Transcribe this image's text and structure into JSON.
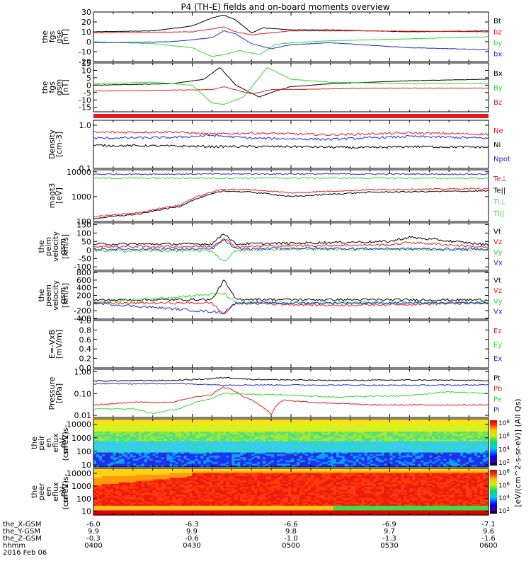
{
  "title": "P4 (TH-E) fields and on-board moments overview",
  "colors": {
    "black": "#000000",
    "red": "#e8191e",
    "green": "#2fd92f",
    "blue": "#1f2bd6"
  },
  "orbit_labels": {
    "rows": [
      {
        "label": "the_X-GSM",
        "values": [
          "-6.0",
          "-6.3",
          "-6.6",
          "-6.9",
          "-7.1"
        ]
      },
      {
        "label": "the_Y-GSM",
        "values": [
          "9.9",
          "9.9",
          "9.8",
          "9.7",
          "9.6"
        ]
      },
      {
        "label": "the_Z-GSM",
        "values": [
          "-0.3",
          "-0.6",
          "-1.0",
          "-1.3",
          "-1.6"
        ]
      },
      {
        "label": "hhmm",
        "values": [
          "0400",
          "0430",
          "0500",
          "0530",
          "0600"
        ]
      }
    ],
    "date": "2016 Feb 06"
  },
  "chart_data": [
    {
      "type": "line",
      "ylabel": [
        "the",
        "fgs",
        "gse",
        "[nT]"
      ],
      "ylim": [
        -20,
        30
      ],
      "ticks": [
        "30",
        "20",
        "10",
        "0",
        "-10",
        "-20"
      ],
      "legend": [
        {
          "name": "Bt",
          "color": "#000000"
        },
        {
          "name": "bz",
          "color": "#e8191e"
        },
        {
          "name": "by",
          "color": "#2fd92f"
        },
        {
          "name": "bx",
          "color": "#1f2bd6"
        }
      ],
      "series": [
        {
          "name": "Bt",
          "color": "#000000",
          "x": [
            0,
            0.15,
            0.25,
            0.3,
            0.33,
            0.36,
            0.4,
            0.43,
            0.5,
            0.6,
            0.8,
            1.0
          ],
          "y": [
            10,
            11,
            16,
            24,
            27,
            22,
            9,
            14,
            12,
            12,
            10,
            11
          ]
        },
        {
          "name": "bz",
          "color": "#e8191e",
          "x": [
            0,
            0.25,
            0.3,
            0.33,
            0.36,
            0.4,
            0.5,
            0.7,
            1.0
          ],
          "y": [
            9,
            10,
            13,
            15,
            10,
            7,
            11,
            11,
            10
          ]
        },
        {
          "name": "by",
          "color": "#2fd92f",
          "x": [
            0,
            0.15,
            0.25,
            0.3,
            0.33,
            0.37,
            0.42,
            0.46,
            0.5,
            0.6,
            0.8,
            1.0
          ],
          "y": [
            0,
            -2,
            -6,
            -15,
            -13,
            -9,
            -13,
            -3,
            -1,
            1,
            3,
            5
          ]
        },
        {
          "name": "bx",
          "color": "#1f2bd6",
          "x": [
            0,
            0.2,
            0.3,
            0.33,
            0.36,
            0.4,
            0.45,
            0.5,
            0.6,
            0.8,
            1.0
          ],
          "y": [
            -1,
            0,
            4,
            11,
            8,
            -2,
            -7,
            -3,
            -1,
            -6,
            -8
          ]
        }
      ]
    },
    {
      "type": "line",
      "ylabel": [
        "the",
        "fgs",
        "gsm",
        "[nT]"
      ],
      "ylim": [
        -18,
        15
      ],
      "ticks": [
        "15",
        "10",
        "5",
        "0",
        "-5",
        "-10",
        "-15"
      ],
      "legend": [
        {
          "name": "Bx",
          "color": "#000000"
        },
        {
          "name": "By",
          "color": "#2fd92f"
        },
        {
          "name": "Bz",
          "color": "#e8191e"
        }
      ],
      "series": [
        {
          "name": "Bx",
          "color": "#000000",
          "x": [
            0,
            0.2,
            0.28,
            0.32,
            0.36,
            0.42,
            0.46,
            0.5,
            0.6,
            0.8,
            1.0
          ],
          "y": [
            0,
            1,
            4,
            12,
            0,
            -8,
            -4,
            -1,
            1,
            3,
            4
          ]
        },
        {
          "name": "By",
          "color": "#2fd92f",
          "x": [
            0,
            0.15,
            0.25,
            0.3,
            0.33,
            0.38,
            0.44,
            0.5,
            0.6,
            0.8,
            1.0
          ],
          "y": [
            1,
            2,
            0,
            -12,
            -13,
            -8,
            12,
            4,
            2,
            1,
            1
          ]
        },
        {
          "name": "Bz",
          "color": "#e8191e",
          "x": [
            0,
            0.3,
            0.33,
            0.4,
            0.45,
            0.5,
            0.7,
            1.0
          ],
          "y": [
            -4,
            -3,
            -1,
            -6,
            -3,
            -3,
            -2,
            -2
          ]
        }
      ]
    },
    {
      "type": "area",
      "quality_flag": true,
      "color": "#e8191e"
    },
    {
      "type": "line",
      "ylabel": [
        "Density",
        "[cm-3]"
      ],
      "yscale": "log",
      "ylim": [
        0.1,
        1.3
      ],
      "ticks": [
        "1.0",
        "0.1"
      ],
      "legend": [
        {
          "name": "Ne",
          "color": "#e8191e"
        },
        {
          "name": "Ni",
          "color": "#000000"
        },
        {
          "name": "Npot",
          "color": "#1f2bd6"
        }
      ],
      "series": [
        {
          "name": "Ne",
          "color": "#e8191e",
          "x": [
            0,
            0.2,
            0.3,
            0.4,
            0.6,
            0.8,
            1.0
          ],
          "y": [
            0.68,
            0.7,
            0.62,
            0.66,
            0.6,
            0.66,
            0.62
          ]
        },
        {
          "name": "Ni",
          "color": "#000000",
          "x": [
            0,
            0.2,
            0.3,
            0.5,
            0.7,
            0.8,
            1.0
          ],
          "y": [
            0.34,
            0.33,
            0.32,
            0.32,
            0.3,
            0.32,
            0.31
          ]
        },
        {
          "name": "Npot",
          "color": "#1f2bd6",
          "x": [
            0,
            0.2,
            0.3,
            0.4,
            0.6,
            0.8,
            1.0
          ],
          "y": [
            0.5,
            0.52,
            0.58,
            0.5,
            0.47,
            0.55,
            0.5
          ]
        }
      ]
    },
    {
      "type": "line",
      "ylabel": [
        "magt3",
        "[eV]"
      ],
      "yscale": "log",
      "ylim": [
        100,
        12000
      ],
      "ticks": [
        "10000",
        "1000",
        "100"
      ],
      "legend": [
        {
          "name": "Te⊥",
          "color": "#e8191e"
        },
        {
          "name": "Te||",
          "color": "#000000"
        },
        {
          "name": "Ti⊥",
          "color": "#2fd92f"
        },
        {
          "name": "Ti||",
          "color": "#2fd92f"
        }
      ],
      "series": [
        {
          "name": "Ti⊥",
          "color": "#1f2bd6",
          "x": [
            0,
            0.5,
            1.0
          ],
          "y": [
            8000,
            8200,
            8000
          ]
        },
        {
          "name": "Ti||",
          "color": "#2fd92f",
          "x": [
            0,
            0.5,
            1.0
          ],
          "y": [
            5500,
            5600,
            5500
          ]
        },
        {
          "name": "Te||",
          "color": "#000000",
          "x": [
            0,
            0.12,
            0.22,
            0.28,
            0.33,
            0.4,
            0.5,
            0.7,
            1.0
          ],
          "y": [
            130,
            200,
            400,
            1000,
            1700,
            1500,
            1000,
            1500,
            1700
          ]
        },
        {
          "name": "Te⊥",
          "color": "#e8191e",
          "x": [
            0,
            0.12,
            0.22,
            0.28,
            0.33,
            0.4,
            0.5,
            0.7,
            1.0
          ],
          "y": [
            150,
            230,
            450,
            1200,
            2000,
            1900,
            1400,
            1900,
            2100
          ]
        }
      ]
    },
    {
      "type": "line",
      "ylabel": [
        "the",
        "peim",
        "velocity",
        "gsm",
        "[km/s]"
      ],
      "ylim": [
        -120,
        160
      ],
      "ticks": [
        "150",
        "100",
        "50",
        "0",
        "-50",
        "-100"
      ],
      "legend": [
        {
          "name": "Vt",
          "color": "#000000"
        },
        {
          "name": "Vz",
          "color": "#e8191e"
        },
        {
          "name": "Vy",
          "color": "#2fd92f"
        },
        {
          "name": "Vx",
          "color": "#1f2bd6"
        }
      ],
      "series": [
        {
          "name": "Vt",
          "color": "#000000",
          "x": [
            0,
            0.3,
            0.33,
            0.36,
            0.5,
            0.75,
            0.8,
            1.0
          ],
          "y": [
            35,
            35,
            100,
            35,
            40,
            50,
            75,
            30
          ]
        },
        {
          "name": "Vz",
          "color": "#e8191e",
          "x": [
            0,
            0.3,
            0.33,
            0.36,
            0.5,
            0.75,
            0.8,
            1.0
          ],
          "y": [
            20,
            20,
            70,
            20,
            25,
            30,
            45,
            15
          ]
        },
        {
          "name": "Vy",
          "color": "#2fd92f",
          "x": [
            0,
            0.3,
            0.33,
            0.36,
            0.5,
            1.0
          ],
          "y": [
            -5,
            -5,
            -70,
            -5,
            5,
            0
          ]
        },
        {
          "name": "Vx",
          "color": "#1f2bd6",
          "x": [
            0,
            0.3,
            0.33,
            0.36,
            0.5,
            1.0
          ],
          "y": [
            5,
            5,
            60,
            5,
            10,
            5
          ]
        }
      ]
    },
    {
      "type": "line",
      "ylabel": [
        "the",
        "peem",
        "velocity",
        "gsm",
        "[km/s]"
      ],
      "ylim": [
        -420,
        820
      ],
      "ticks": [
        "800",
        "600",
        "400",
        "200",
        "0",
        "-200",
        "-400"
      ],
      "legend": [
        {
          "name": "Vt",
          "color": "#000000"
        },
        {
          "name": "Vz",
          "color": "#e8191e"
        },
        {
          "name": "Vy",
          "color": "#2fd92f"
        },
        {
          "name": "Vx",
          "color": "#1f2bd6"
        }
      ],
      "series": [
        {
          "name": "Vt",
          "color": "#000000",
          "x": [
            0,
            0.3,
            0.33,
            0.36,
            0.5,
            1.0
          ],
          "y": [
            80,
            90,
            600,
            100,
            90,
            80
          ]
        },
        {
          "name": "Vz",
          "color": "#e8191e",
          "x": [
            0,
            0.3,
            0.33,
            0.36,
            0.6,
            1.0
          ],
          "y": [
            0,
            0,
            -300,
            0,
            -60,
            0
          ]
        },
        {
          "name": "Vy",
          "color": "#2fd92f",
          "x": [
            0,
            0.33,
            0.36,
            1.0
          ],
          "y": [
            10,
            250,
            10,
            10
          ]
        },
        {
          "name": "Vx",
          "color": "#1f2bd6",
          "x": [
            0,
            0.33,
            0.36,
            1.0
          ],
          "y": [
            0,
            -250,
            0,
            0
          ]
        }
      ]
    },
    {
      "type": "line",
      "ylabel": [
        "E=-VxB",
        "[mV/m]"
      ],
      "ylim": [
        0,
        1.0
      ],
      "ticks": [
        "1.0",
        "0.8",
        "0.6",
        "0.4",
        "0.2",
        "0.0"
      ],
      "legend": [
        {
          "name": "Ez",
          "color": "#e8191e"
        },
        {
          "name": "Ey",
          "color": "#2fd92f"
        },
        {
          "name": "Ex",
          "color": "#1f2bd6"
        }
      ],
      "series": []
    },
    {
      "type": "line",
      "ylabel": [
        "Pressure",
        "[nPa]"
      ],
      "yscale": "log",
      "ylim": [
        0.008,
        1.3
      ],
      "ticks": [
        "1.00",
        "0.10",
        "0.01"
      ],
      "legend": [
        {
          "name": "Pt",
          "color": "#000000"
        },
        {
          "name": "Pb",
          "color": "#e8191e"
        },
        {
          "name": "Pe",
          "color": "#2fd92f"
        },
        {
          "name": "Pi",
          "color": "#1f2bd6"
        }
      ],
      "series": [
        {
          "name": "Pt",
          "color": "#000000",
          "x": [
            0,
            0.2,
            0.3,
            0.33,
            0.4,
            0.6,
            0.8,
            1.0
          ],
          "y": [
            0.38,
            0.4,
            0.48,
            0.55,
            0.45,
            0.4,
            0.42,
            0.4
          ]
        },
        {
          "name": "Pb",
          "color": "#1f2bd6",
          "x": [
            0,
            0.2,
            0.33,
            0.5,
            0.8,
            1.0
          ],
          "y": [
            0.28,
            0.29,
            0.25,
            0.25,
            0.24,
            0.25
          ]
        },
        {
          "name": "Pi",
          "color": "#e8191e",
          "x": [
            0,
            0.1,
            0.2,
            0.3,
            0.33,
            0.38,
            0.42,
            0.45,
            0.48,
            0.55,
            0.7,
            1.0
          ],
          "y": [
            0.03,
            0.04,
            0.04,
            0.09,
            0.2,
            0.07,
            0.03,
            0.01,
            0.05,
            0.04,
            0.03,
            0.03
          ]
        },
        {
          "name": "Pe",
          "color": "#2fd92f",
          "x": [
            0,
            0.1,
            0.15,
            0.22,
            0.3,
            0.33,
            0.45,
            0.6,
            0.8,
            0.9,
            1.0
          ],
          "y": [
            0.02,
            0.02,
            0.012,
            0.02,
            0.06,
            0.1,
            0.09,
            0.07,
            0.08,
            0.12,
            0.1
          ]
        }
      ]
    },
    {
      "type": "heatmap",
      "ylabel": [
        "the",
        "peir",
        "en",
        "eflux",
        "eV",
        "(cm^2-s-",
        "sr-eV)"
      ],
      "yscale": "log",
      "ylim": [
        7,
        25000
      ],
      "ticks": [
        "10000",
        "1000",
        "100",
        "10"
      ],
      "colorbar": {
        "ticks": [
          "10^8",
          "10^6",
          "10^4",
          "10^2"
        ],
        "label": "[eV/(cm^2-s-sr-eV)]"
      }
    },
    {
      "type": "heatmap",
      "ylabel": [
        "the",
        "peer",
        "en",
        "eflux",
        "eV",
        "(cm^2-s-",
        "sr-eV)"
      ],
      "yscale": "log",
      "ylim": [
        5,
        25000
      ],
      "ticks": [
        "10000",
        "1000",
        "100",
        "10"
      ],
      "colorbar": {
        "ticks": [
          "10^8",
          "10^6",
          "10^4",
          "10^2"
        ],
        "label": "[eV/(cm^2-s-sr-eV)]"
      }
    }
  ],
  "colorbar_side_label": "(All Qs)"
}
